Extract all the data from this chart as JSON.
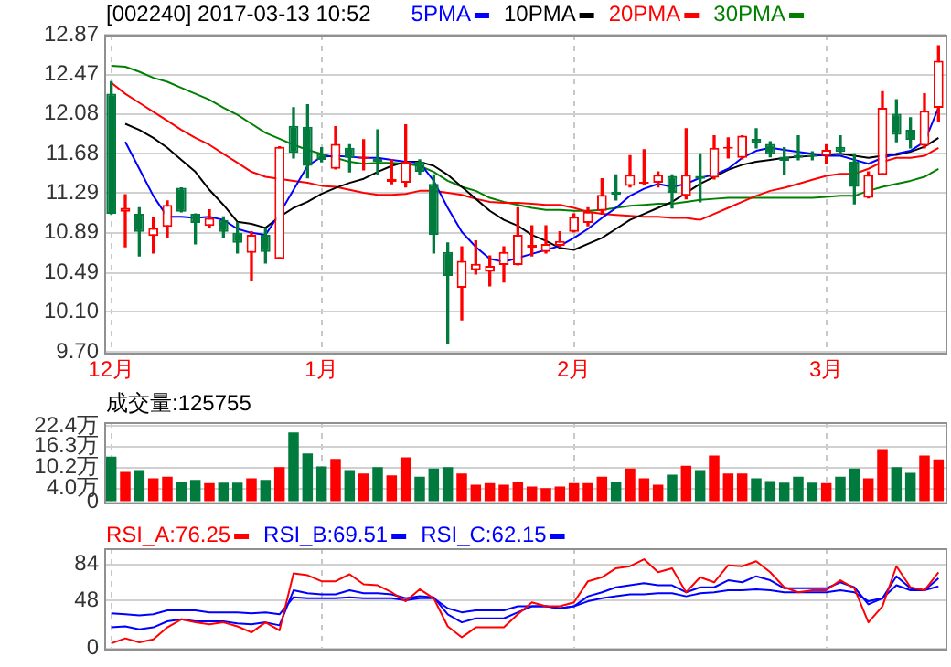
{
  "chart_data": [
    {
      "type": "candlestick",
      "title": "[002240] 2017-03-13 10:52",
      "categories": [
        "12月",
        null,
        null,
        null,
        null,
        null,
        null,
        null,
        null,
        null,
        null,
        null,
        null,
        null,
        null,
        "1月",
        null,
        null,
        null,
        null,
        null,
        null,
        null,
        null,
        null,
        null,
        null,
        null,
        null,
        null,
        null,
        null,
        null,
        "2月",
        null,
        null,
        null,
        null,
        null,
        null,
        null,
        null,
        null,
        null,
        null,
        null,
        null,
        null,
        null,
        null,
        null,
        "3月",
        null,
        null,
        null,
        null,
        null,
        null,
        null,
        null
      ],
      "ohlc": [
        [
          12.28,
          12.4,
          11.08,
          11.08
        ],
        [
          11.1,
          11.27,
          10.75,
          11.14
        ],
        [
          11.08,
          11.14,
          10.66,
          10.9
        ],
        [
          10.86,
          11.04,
          10.69,
          10.94
        ],
        [
          10.95,
          11.21,
          10.84,
          11.17
        ],
        [
          11.34,
          11.34,
          11.1,
          11.1
        ],
        [
          11.08,
          11.08,
          10.78,
          10.99
        ],
        [
          10.96,
          11.12,
          10.94,
          11.04
        ],
        [
          11.02,
          11.05,
          10.85,
          10.9
        ],
        [
          10.89,
          10.99,
          10.69,
          10.79
        ],
        [
          10.69,
          10.9,
          10.42,
          10.87
        ],
        [
          10.87,
          10.93,
          10.59,
          10.7
        ],
        [
          10.63,
          11.75,
          10.63,
          11.75
        ],
        [
          11.96,
          12.14,
          11.64,
          11.69
        ],
        [
          11.95,
          12.17,
          11.44,
          11.56
        ],
        [
          11.68,
          11.74,
          11.6,
          11.62
        ],
        [
          11.53,
          11.95,
          11.53,
          11.78
        ],
        [
          11.74,
          11.77,
          11.5,
          11.64
        ],
        [
          11.63,
          11.82,
          11.52,
          11.65
        ],
        [
          11.63,
          11.92,
          11.47,
          11.6
        ],
        [
          11.4,
          11.62,
          11.38,
          11.43
        ],
        [
          11.39,
          11.97,
          11.35,
          11.6
        ],
        [
          11.6,
          11.62,
          11.47,
          11.5
        ],
        [
          11.38,
          11.47,
          10.69,
          10.87
        ],
        [
          10.7,
          10.79,
          9.78,
          10.46
        ],
        [
          10.34,
          10.75,
          10.02,
          10.61
        ],
        [
          10.52,
          10.81,
          10.48,
          10.58
        ],
        [
          10.5,
          10.66,
          10.36,
          10.56
        ],
        [
          10.57,
          10.75,
          10.4,
          10.7
        ],
        [
          10.57,
          11.14,
          10.57,
          10.87
        ],
        [
          10.74,
          10.96,
          10.66,
          10.77
        ],
        [
          10.7,
          10.96,
          10.69,
          10.78
        ],
        [
          10.76,
          10.9,
          10.75,
          10.81
        ],
        [
          10.9,
          11.08,
          10.9,
          11.05
        ],
        [
          10.99,
          11.14,
          10.96,
          11.1
        ],
        [
          11.11,
          11.43,
          11.08,
          11.27
        ],
        [
          11.3,
          11.47,
          11.22,
          11.27
        ],
        [
          11.36,
          11.66,
          11.35,
          11.47
        ],
        [
          11.38,
          11.72,
          11.37,
          11.4
        ],
        [
          11.39,
          11.5,
          11.35,
          11.47
        ],
        [
          11.46,
          11.47,
          11.14,
          11.29
        ],
        [
          11.26,
          11.93,
          11.23,
          11.47
        ],
        [
          11.46,
          11.68,
          11.2,
          11.43
        ],
        [
          11.44,
          11.86,
          11.43,
          11.74
        ],
        [
          11.73,
          11.84,
          11.64,
          11.74
        ],
        [
          11.64,
          11.86,
          11.63,
          11.86
        ],
        [
          11.83,
          11.93,
          11.74,
          11.79
        ],
        [
          11.78,
          11.8,
          11.65,
          11.68
        ],
        [
          11.65,
          11.74,
          11.48,
          11.61
        ],
        [
          11.67,
          11.86,
          11.62,
          11.64
        ],
        [
          11.67,
          11.7,
          11.62,
          11.65
        ],
        [
          11.66,
          11.77,
          11.58,
          11.72
        ],
        [
          11.75,
          11.86,
          11.68,
          11.7
        ],
        [
          11.6,
          11.68,
          11.18,
          11.35
        ],
        [
          11.24,
          11.5,
          11.24,
          11.47
        ],
        [
          11.47,
          12.3,
          11.47,
          12.14
        ],
        [
          12.08,
          12.22,
          11.8,
          11.87
        ],
        [
          11.92,
          12.04,
          11.74,
          11.82
        ],
        [
          11.76,
          12.28,
          11.74,
          12.11
        ],
        [
          12.14,
          12.76,
          12.0,
          12.61
        ]
      ],
      "colors": [
        "#007a3d",
        "#ff0000",
        "#007a3d",
        "#ff0000",
        "#ff0000",
        "#007a3d",
        "#007a3d",
        "#ff0000",
        "#007a3d",
        "#007a3d",
        "#ff0000",
        "#007a3d",
        "#ff0000",
        "#007a3d",
        "#007a3d",
        "#007a3d",
        "#ff0000",
        "#007a3d",
        "#ff0000",
        "#007a3d",
        "#ff0000",
        "#ff0000",
        "#007a3d",
        "#007a3d",
        "#007a3d",
        "#ff0000",
        "#ff0000",
        "#ff0000",
        "#ff0000",
        "#ff0000",
        "#ff0000",
        "#ff0000",
        "#ff0000",
        "#ff0000",
        "#ff0000",
        "#ff0000",
        "#007a3d",
        "#ff0000",
        "#ff0000",
        "#ff0000",
        "#007a3d",
        "#ff0000",
        "#007a3d",
        "#ff0000",
        "#ff0000",
        "#ff0000",
        "#007a3d",
        "#007a3d",
        "#007a3d",
        "#007a3d",
        "#007a3d",
        "#ff0000",
        "#007a3d",
        "#007a3d",
        "#ff0000",
        "#ff0000",
        "#007a3d",
        "#007a3d",
        "#ff0000",
        "#ff0000"
      ],
      "series": [
        {
          "name": "5PMA",
          "type": "line",
          "color": "#0000ff",
          "values": [
            null,
            11.8,
            11.53,
            11.26,
            11.05,
            11.05,
            11.04,
            11.05,
            11.02,
            10.93,
            10.89,
            10.87,
            11.08,
            11.32,
            11.56,
            11.65,
            11.66,
            11.65,
            11.64,
            11.64,
            11.62,
            11.6,
            11.59,
            11.41,
            11.14,
            10.9,
            10.75,
            10.63,
            10.6,
            10.64,
            10.68,
            10.72,
            10.76,
            10.84,
            10.93,
            11.04,
            11.14,
            11.26,
            11.33,
            11.38,
            11.35,
            11.38,
            11.44,
            11.47,
            11.53,
            11.64,
            11.71,
            11.74,
            11.72,
            11.7,
            11.68,
            11.66,
            11.66,
            11.62,
            11.58,
            11.64,
            11.68,
            11.71,
            11.8,
            12.14
          ]
        },
        {
          "name": "10PMA",
          "type": "line",
          "color": "#000000",
          "values": [
            null,
            11.98,
            11.92,
            11.84,
            11.74,
            11.62,
            11.5,
            11.32,
            11.17,
            11.0,
            10.98,
            10.94,
            11.05,
            11.14,
            11.2,
            11.28,
            11.34,
            11.39,
            11.43,
            11.5,
            11.56,
            11.6,
            11.6,
            11.56,
            11.47,
            11.35,
            11.23,
            11.11,
            11.02,
            10.96,
            10.87,
            10.81,
            10.74,
            10.72,
            10.78,
            10.84,
            10.93,
            11.02,
            11.08,
            11.14,
            11.2,
            11.29,
            11.38,
            11.45,
            11.52,
            11.57,
            11.6,
            11.62,
            11.64,
            11.65,
            11.66,
            11.67,
            11.68,
            11.66,
            11.64,
            11.66,
            11.67,
            11.7,
            11.75,
            11.84
          ]
        },
        {
          "name": "20PMA",
          "type": "line",
          "color": "#ff0000",
          "values": [
            12.39,
            12.28,
            12.19,
            12.1,
            12.01,
            11.92,
            11.84,
            11.77,
            11.68,
            11.59,
            11.5,
            11.45,
            11.43,
            11.41,
            11.39,
            11.36,
            11.35,
            11.32,
            11.29,
            11.27,
            11.27,
            11.28,
            11.31,
            11.31,
            11.29,
            11.27,
            11.23,
            11.2,
            11.19,
            11.19,
            11.18,
            11.17,
            11.17,
            11.14,
            11.1,
            11.08,
            11.07,
            11.06,
            11.05,
            11.05,
            11.04,
            11.04,
            11.02,
            11.08,
            11.14,
            11.2,
            11.26,
            11.31,
            11.34,
            11.38,
            11.42,
            11.46,
            11.48,
            11.48,
            11.53,
            11.6,
            11.64,
            11.64,
            11.66,
            11.74
          ]
        },
        {
          "name": "30PMA",
          "type": "line",
          "color": "#008000",
          "values": [
            12.56,
            12.55,
            12.5,
            12.44,
            12.4,
            12.34,
            12.28,
            12.22,
            12.14,
            12.07,
            11.98,
            11.89,
            11.83,
            11.77,
            11.72,
            11.68,
            11.64,
            11.6,
            11.58,
            11.59,
            11.59,
            11.58,
            11.56,
            11.5,
            11.41,
            11.35,
            11.31,
            11.24,
            11.2,
            11.17,
            11.14,
            11.12,
            11.12,
            11.11,
            11.11,
            11.12,
            11.14,
            11.16,
            11.17,
            11.18,
            11.18,
            11.2,
            11.22,
            11.23,
            11.24,
            11.24,
            11.24,
            11.24,
            11.24,
            11.24,
            11.24,
            11.25,
            11.26,
            11.26,
            11.31,
            11.35,
            11.38,
            11.41,
            11.45,
            11.53
          ]
        }
      ],
      "ylim": [
        9.7,
        12.87
      ],
      "yticks": [
        {
          "value": 9.7,
          "label": "9.70"
        },
        {
          "value": 10.1,
          "label": "10.10"
        },
        10.49,
        10.89,
        11.29,
        11.68,
        12.08,
        12.47,
        12.87
      ],
      "grid": true,
      "legend": "top",
      "marker": "none"
    },
    {
      "type": "bar",
      "title": "成交量:125755",
      "categories": [
        null,
        null,
        null,
        null,
        null,
        null,
        null,
        null,
        null,
        null,
        null,
        null,
        null,
        null,
        null,
        null,
        null,
        null,
        null,
        null,
        null,
        null,
        null,
        null,
        null,
        null,
        null,
        null,
        null,
        null,
        null,
        null,
        null,
        null,
        null,
        null,
        null,
        null,
        null,
        null,
        null,
        null,
        null,
        null,
        null,
        null,
        null,
        null,
        null,
        null,
        null,
        null,
        null,
        null,
        null,
        null,
        null,
        null,
        null,
        null
      ],
      "values": [
        13.4,
        8.9,
        9.4,
        7.0,
        7.5,
        6.0,
        6.5,
        5.6,
        5.7,
        5.7,
        7.0,
        6.5,
        10.3,
        20.5,
        14.3,
        10.5,
        12.7,
        9.4,
        8.4,
        10.3,
        7.9,
        13.2,
        7.5,
        9.9,
        10.3,
        8.4,
        5.1,
        5.6,
        5.1,
        6.0,
        4.6,
        4.1,
        4.6,
        5.6,
        5.6,
        7.5,
        6.0,
        9.9,
        7.0,
        5.1,
        8.1,
        10.7,
        9.4,
        13.7,
        8.4,
        8.4,
        7.0,
        6.2,
        5.7,
        7.5,
        5.7,
        5.6,
        7.5,
        9.9,
        7.0,
        15.6,
        10.3,
        8.6,
        13.7,
        12.6
      ],
      "colors": [
        "#007a3d",
        "#ff0000",
        "#007a3d",
        "#ff0000",
        "#ff0000",
        "#007a3d",
        "#007a3d",
        "#ff0000",
        "#007a3d",
        "#007a3d",
        "#ff0000",
        "#007a3d",
        "#ff0000",
        "#007a3d",
        "#007a3d",
        "#007a3d",
        "#ff0000",
        "#007a3d",
        "#ff0000",
        "#007a3d",
        "#ff0000",
        "#ff0000",
        "#007a3d",
        "#007a3d",
        "#007a3d",
        "#ff0000",
        "#ff0000",
        "#ff0000",
        "#ff0000",
        "#ff0000",
        "#ff0000",
        "#ff0000",
        "#ff0000",
        "#ff0000",
        "#ff0000",
        "#ff0000",
        "#007a3d",
        "#ff0000",
        "#ff0000",
        "#ff0000",
        "#007a3d",
        "#ff0000",
        "#007a3d",
        "#ff0000",
        "#ff0000",
        "#ff0000",
        "#007a3d",
        "#007a3d",
        "#007a3d",
        "#007a3d",
        "#007a3d",
        "#ff0000",
        "#007a3d",
        "#007a3d",
        "#ff0000",
        "#ff0000",
        "#007a3d",
        "#007a3d",
        "#ff0000",
        "#ff0000"
      ],
      "ylim": [
        0,
        23.5
      ],
      "yticks": [
        0,
        {
          "value": 4.0,
          "label": "4.0万"
        },
        {
          "value": 10.2,
          "label": "10.2万"
        },
        {
          "value": 16.3,
          "label": "16.3万"
        },
        {
          "value": 22.4,
          "label": "22.4万"
        }
      ],
      "grid": true,
      "tick_labels": "y"
    },
    {
      "type": "line",
      "categories": [
        null,
        null,
        null,
        null,
        null,
        null,
        null,
        null,
        null,
        null,
        null,
        null,
        null,
        null,
        null,
        null,
        null,
        null,
        null,
        null,
        null,
        null,
        null,
        null,
        null,
        null,
        null,
        null,
        null,
        null,
        null,
        null,
        null,
        null,
        null,
        null,
        null,
        null,
        null,
        null,
        null,
        null,
        null,
        null,
        null,
        null,
        null,
        null,
        null,
        null,
        null,
        null,
        null,
        null,
        null,
        null,
        null,
        null,
        null,
        null
      ],
      "series": [
        {
          "name": "RSI_A:76.25",
          "color": "#ff0000",
          "values": [
            5,
            10,
            6,
            9,
            21,
            29,
            26,
            24,
            26,
            22,
            16,
            26,
            18,
            75,
            73,
            67,
            67,
            74,
            64,
            63,
            56,
            47,
            59,
            50,
            22,
            11,
            21,
            21,
            21,
            34,
            46,
            42,
            42,
            46,
            67,
            71,
            80,
            82,
            89,
            76,
            80,
            56,
            71,
            66,
            83,
            82,
            87,
            76,
            61,
            56,
            58,
            58,
            68,
            60,
            26,
            42,
            82,
            61,
            58,
            76
          ]
        },
        {
          "name": "RSI_B:69.51",
          "color": "#0000ff",
          "values": [
            21,
            22,
            19,
            21,
            27,
            29,
            27,
            27,
            27,
            25,
            24,
            26,
            23,
            58,
            55,
            54,
            54,
            58,
            55,
            55,
            54,
            50,
            52,
            51,
            34,
            26,
            30,
            30,
            30,
            36,
            42,
            42,
            40,
            42,
            52,
            56,
            61,
            63,
            65,
            63,
            63,
            56,
            61,
            61,
            68,
            66,
            72,
            68,
            60,
            60,
            60,
            60,
            66,
            61,
            44,
            50,
            72,
            60,
            58,
            70
          ]
        },
        {
          "name": "RSI_C:62.15",
          "color": "#0000ff",
          "values": [
            35,
            34,
            33,
            34,
            38,
            38,
            38,
            36,
            36,
            36,
            35,
            36,
            34,
            51,
            50,
            50,
            50,
            51,
            50,
            50,
            50,
            48,
            50,
            50,
            40,
            36,
            38,
            38,
            38,
            42,
            42,
            42,
            40,
            42,
            47,
            50,
            52,
            54,
            54,
            55,
            55,
            52,
            55,
            56,
            58,
            58,
            59,
            58,
            56,
            56,
            56,
            56,
            58,
            56,
            47,
            50,
            63,
            58,
            58,
            62
          ]
        }
      ],
      "ylim": [
        0,
        100
      ],
      "yticks": [
        0,
        48,
        84
      ],
      "grid": true,
      "legend": "top left",
      "tick_labels": "y",
      "marker": "none"
    }
  ]
}
